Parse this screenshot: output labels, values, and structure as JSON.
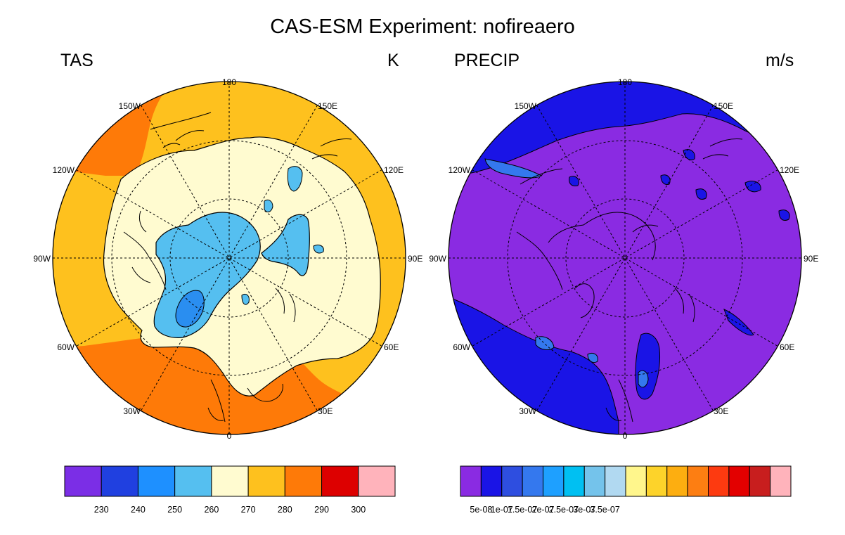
{
  "title": "CAS-ESM Experiment: nofireaero",
  "panels": [
    {
      "variable": "TAS",
      "units": "K",
      "longitude_labels": [
        "180",
        "150E",
        "120E",
        "90E",
        "60E",
        "30E",
        "0",
        "30W",
        "60W",
        "90W",
        "120W",
        "150W"
      ],
      "colorbar": {
        "colors": [
          "#7b2ee6",
          "#2040e0",
          "#1e90ff",
          "#55bff0",
          "#fffbd0",
          "#fec11e",
          "#fe7a08",
          "#dd0000",
          "#ffb3bb"
        ],
        "labels": [
          "230",
          "240",
          "250",
          "260",
          "270",
          "280",
          "290",
          "300"
        ]
      }
    },
    {
      "variable": "PRECIP",
      "units": "m/s",
      "longitude_labels": [
        "180",
        "150E",
        "120E",
        "90E",
        "60E",
        "30E",
        "0",
        "30W",
        "60W",
        "90W",
        "120W",
        "150W"
      ],
      "colorbar": {
        "colors": [
          "#8a2be2",
          "#1a14e6",
          "#2e4ee0",
          "#3478ee",
          "#1ea0ff",
          "#00c0f2",
          "#74c3eb",
          "#b1d9f1",
          "#fff68c",
          "#fdd32a",
          "#fdae10",
          "#fd7e12",
          "#fd3a10",
          "#e30000",
          "#c81e1e",
          "#ffb3bb"
        ],
        "labels": [
          "5e-08",
          "1e-07",
          "1.5e-07",
          "2e-07",
          "2.5e-07",
          "3e-07",
          "3.5e-07"
        ]
      }
    }
  ]
}
